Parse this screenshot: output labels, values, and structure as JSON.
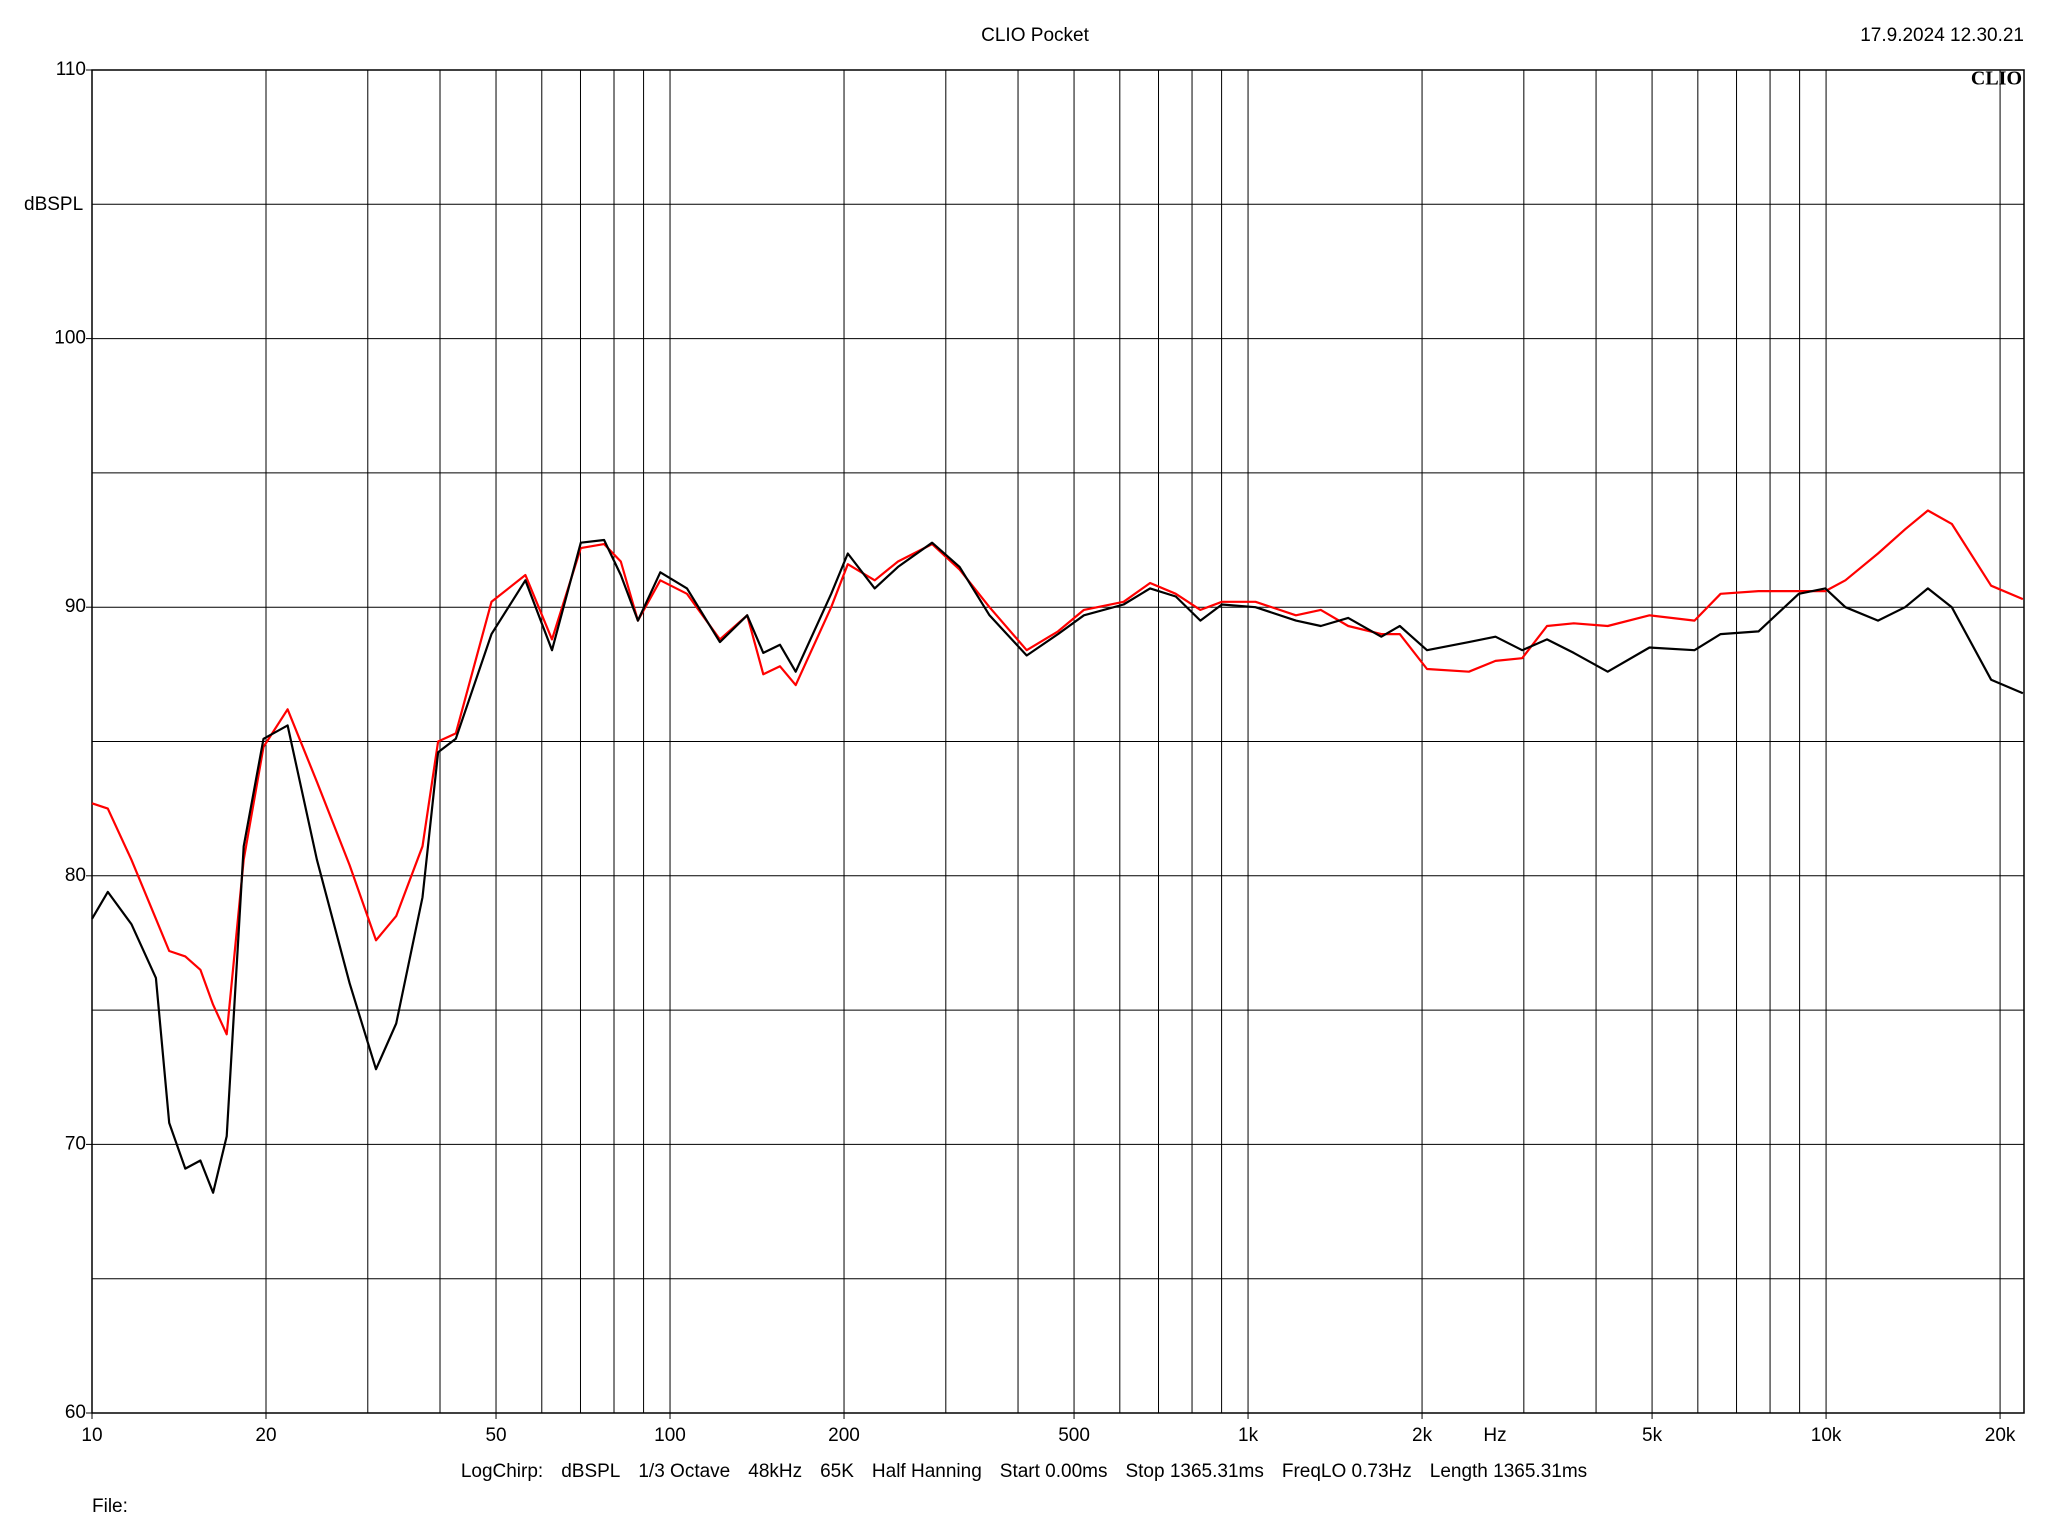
{
  "chart_data": {
    "type": "line",
    "title": "CLIO Pocket",
    "timestamp": "17.9.2024 12.30.21",
    "logo": "CLIO",
    "y_label": "dBSPL",
    "x_label": "Hz",
    "info": [
      "LogChirp:",
      "dBSPL",
      "1/3 Octave",
      "48kHz",
      "65K",
      "Half Hanning",
      "Start 0.00ms",
      "Stop 1365.31ms",
      "FreqLO 0.73Hz",
      "Length 1365.31ms"
    ],
    "file_label": "File:",
    "log_x": true,
    "xlim": [
      10,
      22000
    ],
    "ylim": [
      60,
      110
    ],
    "xticks": [
      10,
      20,
      50,
      100,
      200,
      500,
      {
        "value": 1000,
        "label": "1k"
      },
      {
        "value": 2000,
        "label": "2k"
      },
      {
        "value": 5000,
        "label": "5k"
      },
      {
        "value": 10000,
        "label": "10k"
      },
      {
        "value": 20000,
        "label": "20k"
      }
    ],
    "xgrid": [
      10,
      20,
      30,
      40,
      50,
      60,
      70,
      80,
      90,
      100,
      200,
      300,
      400,
      500,
      600,
      700,
      800,
      900,
      1000,
      2000,
      3000,
      4000,
      5000,
      6000,
      7000,
      8000,
      9000,
      10000,
      20000
    ],
    "yticks": [
      60,
      70,
      80,
      90,
      100,
      110
    ],
    "ygrid": [
      65,
      70,
      75,
      80,
      85,
      90,
      95,
      100,
      105
    ],
    "x": [
      10,
      10.65,
      11.7,
      12.9,
      13.6,
      14.5,
      15.4,
      16.2,
      17.1,
      18.3,
      19.8,
      21.8,
      24.5,
      27.9,
      31,
      33.6,
      37.3,
      39.7,
      42.6,
      49.1,
      56.2,
      62.5,
      70.1,
      76.9,
      82.2,
      88,
      96.2,
      107,
      122,
      136,
      145,
      155,
      165,
      190,
      203,
      226,
      248,
      284,
      317,
      357,
      414,
      469,
      520,
      609,
      677,
      750,
      827,
      901,
      1030,
      1210,
      1336,
      1490,
      1700,
      1830,
      2040,
      2410,
      2680,
      2980,
      3290,
      3660,
      4190,
      4950,
      5920,
      6570,
      7640,
      8970,
      9970,
      10800,
      12300,
      13700,
      15000,
      16500,
      19300,
      21900
    ],
    "series": [
      {
        "color": "#ff0000",
        "values": [
          82.7,
          82.5,
          80.6,
          78.4,
          77.2,
          77.0,
          76.5,
          75.2,
          74.1,
          80.6,
          84.8,
          86.2,
          83.5,
          80.4,
          77.6,
          78.5,
          81.1,
          85.0,
          85.3,
          90.2,
          91.2,
          88.8,
          92.2,
          92.35,
          91.7,
          89.5,
          91.0,
          90.5,
          88.8,
          89.7,
          87.5,
          87.8,
          87.1,
          90.0,
          91.6,
          91.0,
          91.7,
          92.35,
          91.4,
          90.0,
          88.4,
          89.1,
          89.9,
          90.2,
          90.9,
          90.5,
          89.9,
          90.2,
          90.2,
          89.7,
          89.9,
          89.3,
          89.0,
          89.0,
          87.7,
          87.6,
          88.0,
          88.1,
          89.3,
          89.4,
          89.3,
          89.7,
          89.5,
          90.5,
          90.6,
          90.6,
          90.6,
          91.0,
          92.0,
          92.9,
          93.6,
          93.1,
          90.8,
          90.3
        ]
      },
      {
        "color": "#000000",
        "values": [
          78.4,
          79.4,
          78.2,
          76.2,
          70.8,
          69.1,
          69.4,
          68.2,
          70.3,
          81.1,
          85.1,
          85.6,
          80.6,
          76.0,
          72.8,
          74.5,
          79.2,
          84.6,
          85.1,
          89.0,
          91.0,
          88.4,
          92.4,
          92.5,
          91.2,
          89.5,
          91.3,
          90.7,
          88.7,
          89.7,
          88.3,
          88.6,
          87.6,
          90.5,
          92.0,
          90.7,
          91.5,
          92.4,
          91.5,
          89.7,
          88.2,
          89.0,
          89.7,
          90.1,
          90.7,
          90.4,
          89.5,
          90.1,
          90.0,
          89.5,
          89.3,
          89.6,
          88.9,
          89.3,
          88.4,
          88.7,
          88.9,
          88.4,
          88.8,
          88.3,
          87.6,
          88.5,
          88.4,
          89.0,
          89.1,
          90.5,
          90.7,
          90.0,
          89.5,
          90.0,
          90.7,
          90.0,
          87.3,
          86.8
        ]
      }
    ]
  }
}
